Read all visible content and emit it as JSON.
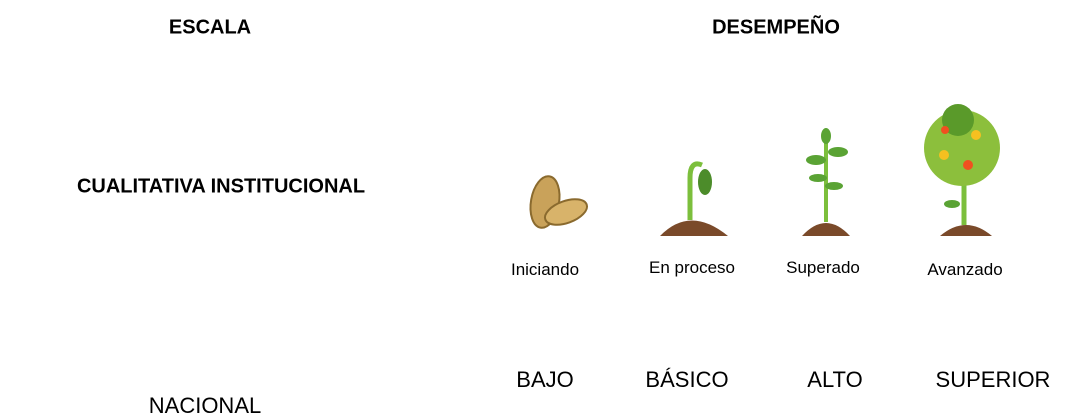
{
  "header": {
    "scale": "ESCALA",
    "performance": "DESEMPEÑO"
  },
  "rows": [
    {
      "label": "CUALITATIVA  INSTITUCIONAL",
      "values": [
        "Iniciando",
        "En proceso",
        "Superado",
        "Avanzado"
      ]
    },
    {
      "label": "NACIONAL",
      "values": [
        "BAJO",
        "BÁSICO",
        "ALTO",
        "SUPERIOR"
      ]
    }
  ]
}
